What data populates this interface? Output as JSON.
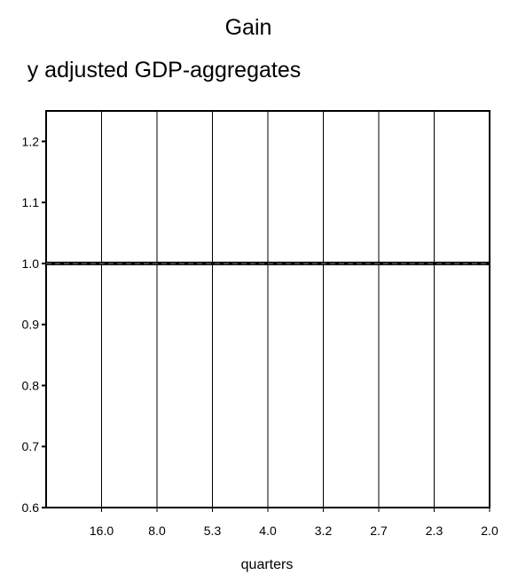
{
  "chart_data": {
    "type": "line",
    "title": "Gain",
    "subtitle": "y adjusted GDP-aggregates",
    "xlabel": "quarters",
    "ylabel": "",
    "categories": [
      "",
      "16.0",
      "8.0",
      "5.3",
      "4.0",
      "3.2",
      "2.7",
      "2.3",
      "2.0"
    ],
    "xtick_labels": [
      "16.0",
      "8.0",
      "5.3",
      "4.0",
      "3.2",
      "2.7",
      "2.3",
      "2.0"
    ],
    "ylim": [
      0.6,
      1.25
    ],
    "yticks": [
      0.6,
      0.7,
      0.8,
      0.9,
      1.0,
      1.1,
      1.2
    ],
    "ytick_labels": [
      "0.6",
      "0.7",
      "0.8",
      "0.9",
      "1.0",
      "1.1",
      "1.2"
    ],
    "grid": {
      "vertical": true,
      "horizontal": false
    },
    "series": [
      {
        "values": [
          1.0,
          1.0,
          1.0,
          1.0,
          1.0,
          1.0,
          1.0,
          1.0,
          1.0
        ],
        "color": "#000000",
        "style": "solid"
      },
      {
        "values": [
          1.0,
          1.0,
          1.0,
          1.0,
          1.0,
          1.0,
          1.0,
          1.0,
          1.0
        ],
        "color": "#444444",
        "style": "dashed"
      }
    ]
  }
}
